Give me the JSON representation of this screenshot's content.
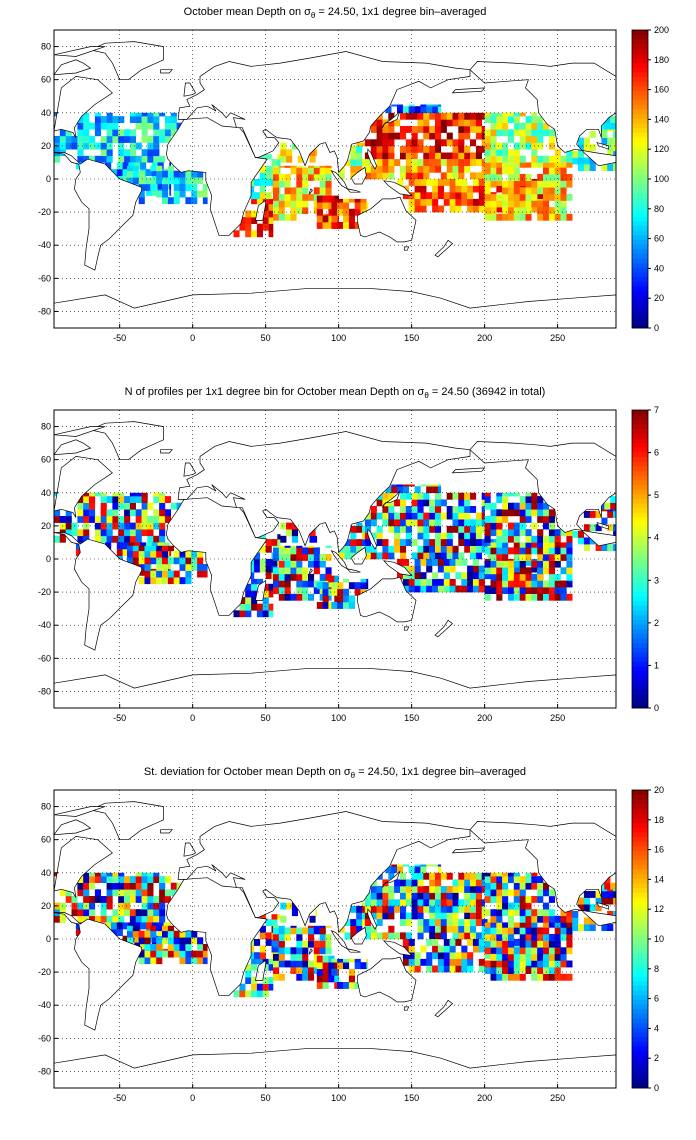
{
  "figure": {
    "panels": [
      {
        "id": "mean",
        "title_pre": "October mean Depth on σ",
        "title_sub": "θ",
        "title_post": " = 24.50, 1x1 degree bin–averaged",
        "colorbar": {
          "min": 0,
          "max": 200,
          "ticks": [
            "0",
            "20",
            "40",
            "60",
            "80",
            "100",
            "120",
            "140",
            "160",
            "180",
            "200"
          ]
        }
      },
      {
        "id": "count",
        "title_pre": "N of profiles per 1x1 degree bin for October mean Depth on σ",
        "title_sub": "θ",
        "title_post": " = 24.50 (36942 in total)",
        "colorbar": {
          "min": 0,
          "max": 7,
          "ticks": [
            "0",
            "1",
            "2",
            "3",
            "4",
            "5",
            "6",
            "7"
          ]
        }
      },
      {
        "id": "std",
        "title_pre": "St. deviation for October mean Depth on σ",
        "title_sub": "θ",
        "title_post": " = 24.50, 1x1 degree bin–averaged",
        "colorbar": {
          "min": 0,
          "max": 20,
          "ticks": [
            "0",
            "2",
            "4",
            "6",
            "8",
            "10",
            "12",
            "14",
            "16",
            "18",
            "20"
          ]
        }
      }
    ],
    "x_axis": {
      "min": -95,
      "max": 290,
      "ticks": [
        "-50",
        "0",
        "50",
        "100",
        "150",
        "200",
        "250"
      ]
    },
    "y_axis": {
      "min": -90,
      "max": 90,
      "ticks": [
        "-80",
        "-60",
        "-40",
        "-20",
        "0",
        "20",
        "40",
        "60",
        "80"
      ]
    },
    "grid": "dotted",
    "colormap": "jet",
    "coastline_color": "#000000"
  }
}
